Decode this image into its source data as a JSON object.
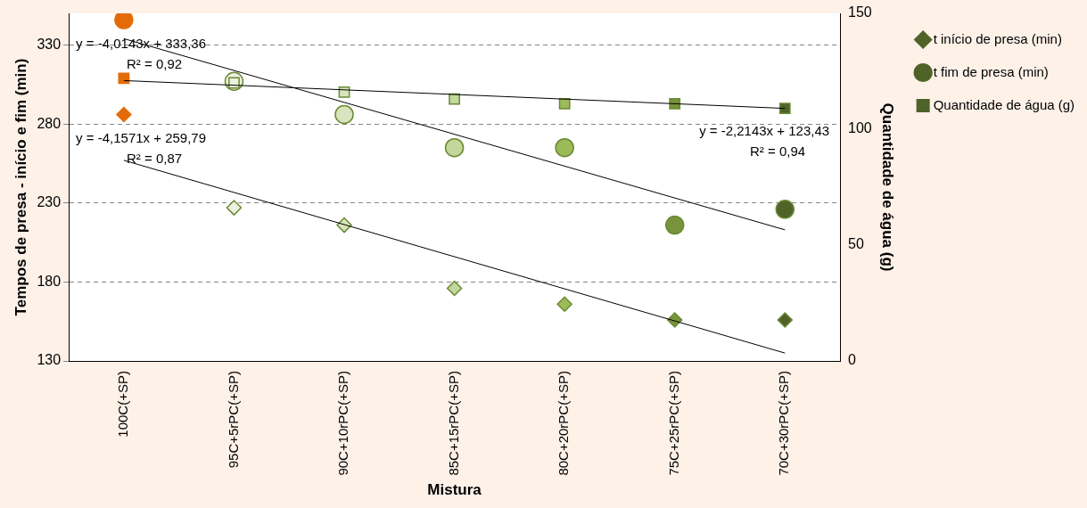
{
  "chart_data": {
    "type": "scatter",
    "xlabel": "Mistura",
    "ylabel": "Tempos de presa - início e fim (min)",
    "y2label": "Quantidade de água (g)",
    "categories": [
      "100C(+SP)",
      "95C+5rPC(+SP)",
      "90C+10rPC(+SP)",
      "85C+15rPC(+SP)",
      "80C+20rPC(+SP)",
      "75C+25rPC(+SP)",
      "70C+30rPC(+SP)"
    ],
    "series": [
      {
        "name": "t início de presa (min)",
        "marker": "diamond",
        "color": "#4f6228",
        "colors": [
          "#e36c09",
          "#ebf1de",
          "#d7e4bd",
          "#c3d69b",
          "#9bbb59",
          "#77933c",
          "#4f6228"
        ],
        "values": [
          286,
          227,
          216,
          176,
          166,
          156,
          156
        ]
      },
      {
        "name": "t fim de presa (min)",
        "marker": "circle",
        "color": "#4f6228",
        "colors": [
          "#e36c09",
          "#ebf1de",
          "#d7e4bd",
          "#c3d69b",
          "#9bbb59",
          "#77933c",
          "#4f6228"
        ],
        "values": [
          346,
          307,
          286,
          265,
          265,
          216,
          226
        ]
      },
      {
        "name": "Quantidade de água (g)",
        "marker": "square",
        "axis": "y2",
        "color": "#4f6228",
        "colors": [
          "#e36c09",
          "#ebf1de",
          "#d7e4bd",
          "#c3d69b",
          "#9bbb59",
          "#77933c",
          "#4f6228"
        ],
        "values": [
          122,
          120,
          116,
          113,
          111,
          111,
          109
        ]
      },
      {
        "type": "line",
        "marker": "none",
        "color": "#000000",
        "x": [
          "100C(+SP)",
          "70C+30rPC(+SP)"
        ],
        "values": [
          257,
          135
        ]
      },
      {
        "type": "line",
        "marker": "none",
        "color": "#000000",
        "x": [
          "100C(+SP)",
          "70C+30rPC(+SP)"
        ],
        "values": [
          334,
          213
        ]
      },
      {
        "type": "line",
        "marker": "none",
        "axis": "y2",
        "color": "#000000",
        "x": [
          "100C(+SP)",
          "70C+30rPC(+SP)"
        ],
        "values": [
          121,
          109
        ]
      }
    ],
    "ylim": [
      130,
      350
    ],
    "yticks": [
      130,
      180,
      230,
      280,
      330
    ],
    "y2lim": [
      0,
      150
    ],
    "y2ticks": [
      0,
      50,
      100,
      150
    ],
    "grid": "y",
    "legend": "top right",
    "annotations": [
      "y = -4,0143x + 333,36\nR² = 0,92",
      "y = -4,1571x + 259,79\nR² = 0,87",
      "y = -2,2143x + 123,43\nR² = 0,94"
    ]
  }
}
